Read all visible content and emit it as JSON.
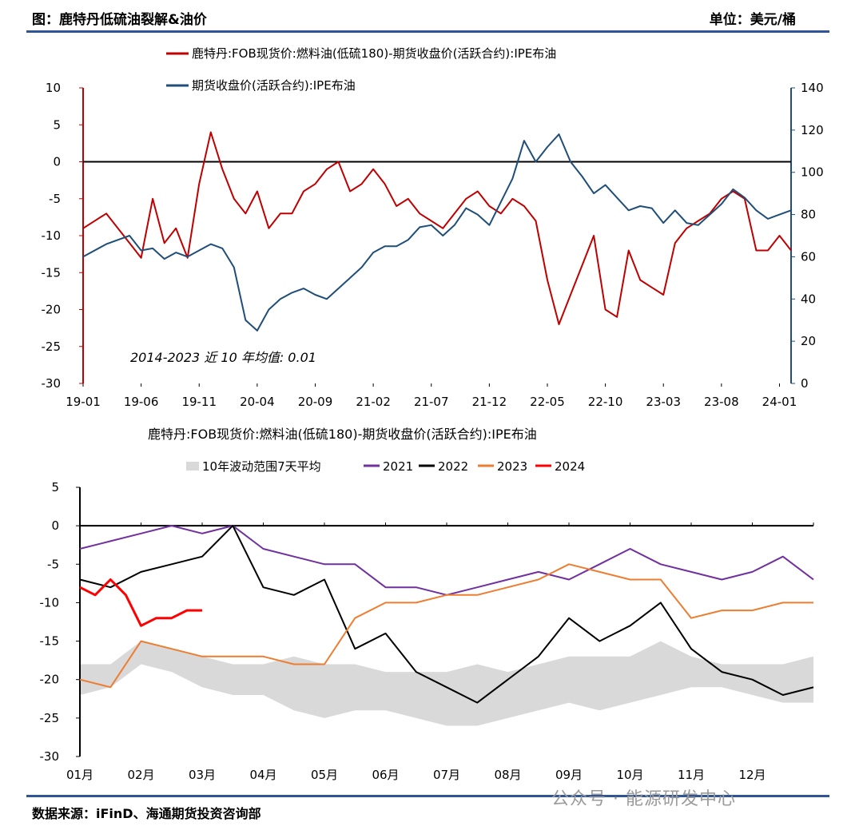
{
  "header": {
    "title": "图：鹿特丹低硫油裂解&油价",
    "unit": "单位：美元/桶"
  },
  "footer": {
    "source": "数据来源：iFinD、海通期货投资咨询部",
    "watermark": "公众号 · 能源研发中心"
  },
  "colors": {
    "accent_rule": "#2f5597",
    "crack_red": "#c00000",
    "brent_blue": "#1f4e79",
    "s2021": "#7030a0",
    "s2022": "#000000",
    "s2023": "#ed7d31",
    "s2024": "#ff0000",
    "band_gray": "#d9d9d9"
  },
  "chart_data": [
    {
      "type": "line",
      "legend": {
        "position": "top",
        "entries": [
          "鹿特丹:FOB现货价:燃料油(低硫180)-期货收盘价(活跃合约):IPE布油",
          "期货收盘价(活跃合约):IPE布油"
        ]
      },
      "x_ticks": [
        "19-01",
        "19-06",
        "19-11",
        "20-04",
        "20-09",
        "21-02",
        "21-07",
        "21-12",
        "22-05",
        "22-10",
        "23-03",
        "23-08",
        "24-01"
      ],
      "y_left": {
        "lim": [
          -30,
          10
        ],
        "ticks": [
          "10",
          "5",
          "0",
          "-5",
          "-10",
          "-15",
          "-20",
          "-25",
          "-30"
        ]
      },
      "y_right": {
        "lim": [
          0,
          140
        ],
        "ticks": [
          "140",
          "120",
          "100",
          "80",
          "60",
          "40",
          "20",
          "0"
        ]
      },
      "annotation": "2014-2023 近 10 年均值: 0.01",
      "series": [
        {
          "name": "鹿特丹:FOB现货价:燃料油(低硫180)-期货收盘价(活跃合约):IPE布油",
          "axis": "left",
          "x": [
            "19-01",
            "19-03",
            "19-05",
            "19-06",
            "19-07",
            "19-08",
            "19-09",
            "19-10",
            "19-11",
            "19-12",
            "20-01",
            "20-02",
            "20-03",
            "20-04",
            "20-05",
            "20-06",
            "20-07",
            "20-08",
            "20-09",
            "20-10",
            "20-11",
            "20-12",
            "21-01",
            "21-02",
            "21-03",
            "21-04",
            "21-05",
            "21-06",
            "21-07",
            "21-08",
            "21-09",
            "21-10",
            "21-11",
            "21-12",
            "22-01",
            "22-02",
            "22-03",
            "22-04",
            "22-05",
            "22-06",
            "22-07",
            "22-08",
            "22-09",
            "22-10",
            "22-11",
            "22-12",
            "23-01",
            "23-02",
            "23-03",
            "23-04",
            "23-05",
            "23-06",
            "23-07",
            "23-08",
            "23-09",
            "23-10",
            "23-11",
            "23-12",
            "24-01",
            "24-02"
          ],
          "values": [
            -9,
            -7,
            -11,
            -13,
            -5,
            -11,
            -9,
            -13,
            -3,
            4,
            -1,
            -5,
            -7,
            -4,
            -9,
            -7,
            -7,
            -4,
            -3,
            -1,
            0,
            -4,
            -3,
            -1,
            -3,
            -6,
            -5,
            -7,
            -8,
            -9,
            -7,
            -5,
            -4,
            -6,
            -7,
            -5,
            -6,
            -8,
            -16,
            -22,
            -18,
            -14,
            -10,
            -20,
            -21,
            -12,
            -16,
            -17,
            -18,
            -11,
            -9,
            -8,
            -7,
            -5,
            -4,
            -5,
            -12,
            -12,
            -10,
            -12
          ]
        },
        {
          "name": "期货收盘价(活跃合约):IPE布油",
          "axis": "right",
          "x": [
            "19-01",
            "19-03",
            "19-05",
            "19-06",
            "19-07",
            "19-08",
            "19-09",
            "19-10",
            "19-11",
            "19-12",
            "20-01",
            "20-02",
            "20-03",
            "20-04",
            "20-05",
            "20-06",
            "20-07",
            "20-08",
            "20-09",
            "20-10",
            "20-11",
            "20-12",
            "21-01",
            "21-02",
            "21-03",
            "21-04",
            "21-05",
            "21-06",
            "21-07",
            "21-08",
            "21-09",
            "21-10",
            "21-11",
            "21-12",
            "22-01",
            "22-02",
            "22-03",
            "22-04",
            "22-05",
            "22-06",
            "22-07",
            "22-08",
            "22-09",
            "22-10",
            "22-11",
            "22-12",
            "23-01",
            "23-02",
            "23-03",
            "23-04",
            "23-05",
            "23-06",
            "23-07",
            "23-08",
            "23-09",
            "23-10",
            "23-11",
            "23-12",
            "24-01",
            "24-02"
          ],
          "values": [
            60,
            66,
            70,
            63,
            64,
            59,
            62,
            60,
            63,
            66,
            64,
            55,
            30,
            25,
            35,
            40,
            43,
            45,
            42,
            40,
            45,
            50,
            55,
            62,
            65,
            65,
            68,
            74,
            75,
            70,
            75,
            83,
            80,
            75,
            86,
            97,
            115,
            105,
            112,
            118,
            105,
            98,
            90,
            94,
            88,
            82,
            84,
            83,
            76,
            82,
            76,
            75,
            80,
            85,
            92,
            88,
            82,
            78,
            80,
            82
          ]
        }
      ]
    },
    {
      "type": "line",
      "title": "鹿特丹:FOB现货价:燃料油(低硫180)-期货收盘价(活跃合约):IPE布油",
      "legend": {
        "position": "top",
        "entries": [
          "10年波动范围7天平均",
          "2021",
          "2022",
          "2023",
          "2024"
        ]
      },
      "categories": [
        "01月",
        "02月",
        "03月",
        "04月",
        "05月",
        "06月",
        "07月",
        "08月",
        "09月",
        "10月",
        "11月",
        "12月"
      ],
      "ylim": [
        -30,
        5
      ],
      "y_ticks": [
        "5",
        "0",
        "-5",
        "-10",
        "-15",
        "-20",
        "-25",
        "-30"
      ],
      "band": {
        "name": "10年波动范围7天平均",
        "x": [
          0,
          0.5,
          1,
          1.5,
          2,
          2.5,
          3,
          3.5,
          4,
          4.5,
          5,
          5.5,
          6,
          6.5,
          7,
          7.5,
          8,
          8.5,
          9,
          9.5,
          10,
          10.5,
          11,
          11.5,
          12
        ],
        "low": [
          -22,
          -21,
          -18,
          -19,
          -21,
          -22,
          -22,
          -24,
          -25,
          -24,
          -24,
          -25,
          -26,
          -26,
          -25,
          -24,
          -23,
          -24,
          -23,
          -22,
          -21,
          -21,
          -22,
          -23,
          -23
        ],
        "high": [
          -18,
          -18,
          -15,
          -16,
          -17,
          -18,
          -18,
          -17,
          -18,
          -18,
          -19,
          -19,
          -19,
          -18,
          -19,
          -18,
          -17,
          -17,
          -17,
          -15,
          -17,
          -18,
          -18,
          -18,
          -17
        ]
      },
      "series": [
        {
          "name": "2021",
          "x": [
            0,
            0.5,
            1,
            1.5,
            2,
            2.5,
            3,
            3.5,
            4,
            4.5,
            5,
            5.5,
            6,
            6.5,
            7,
            7.5,
            8,
            8.5,
            9,
            9.5,
            10,
            10.5,
            11,
            11.5,
            12
          ],
          "values": [
            -3,
            -2,
            -1,
            0,
            -1,
            0,
            -3,
            -4,
            -5,
            -5,
            -8,
            -8,
            -9,
            -8,
            -7,
            -6,
            -7,
            -5,
            -3,
            -5,
            -6,
            -7,
            -6,
            -4,
            -7
          ]
        },
        {
          "name": "2022",
          "x": [
            0,
            0.5,
            1,
            1.5,
            2,
            2.5,
            3,
            3.5,
            4,
            4.5,
            5,
            5.5,
            6,
            6.5,
            7,
            7.5,
            8,
            8.5,
            9,
            9.5,
            10,
            10.5,
            11,
            11.5,
            12
          ],
          "values": [
            -7,
            -8,
            -6,
            -5,
            -4,
            0,
            -8,
            -9,
            -7,
            -16,
            -14,
            -19,
            -21,
            -23,
            -20,
            -17,
            -12,
            -15,
            -13,
            -10,
            -16,
            -19,
            -20,
            -22,
            -21
          ]
        },
        {
          "name": "2023",
          "x": [
            0,
            0.5,
            1,
            1.5,
            2,
            2.5,
            3,
            3.5,
            4,
            4.5,
            5,
            5.5,
            6,
            6.5,
            7,
            7.5,
            8,
            8.5,
            9,
            9.5,
            10,
            10.5,
            11,
            11.5,
            12
          ],
          "values": [
            -20,
            -21,
            -15,
            -16,
            -17,
            -17,
            -17,
            -18,
            -18,
            -12,
            -10,
            -10,
            -9,
            -9,
            -8,
            -7,
            -5,
            -6,
            -7,
            -7,
            -12,
            -11,
            -11,
            -10,
            -10
          ]
        },
        {
          "name": "2024",
          "x": [
            0,
            0.25,
            0.5,
            0.75,
            1,
            1.25,
            1.5,
            1.75,
            2
          ],
          "values": [
            -8,
            -9,
            -7,
            -9,
            -13,
            -12,
            -12,
            -11,
            -11
          ]
        }
      ]
    }
  ]
}
